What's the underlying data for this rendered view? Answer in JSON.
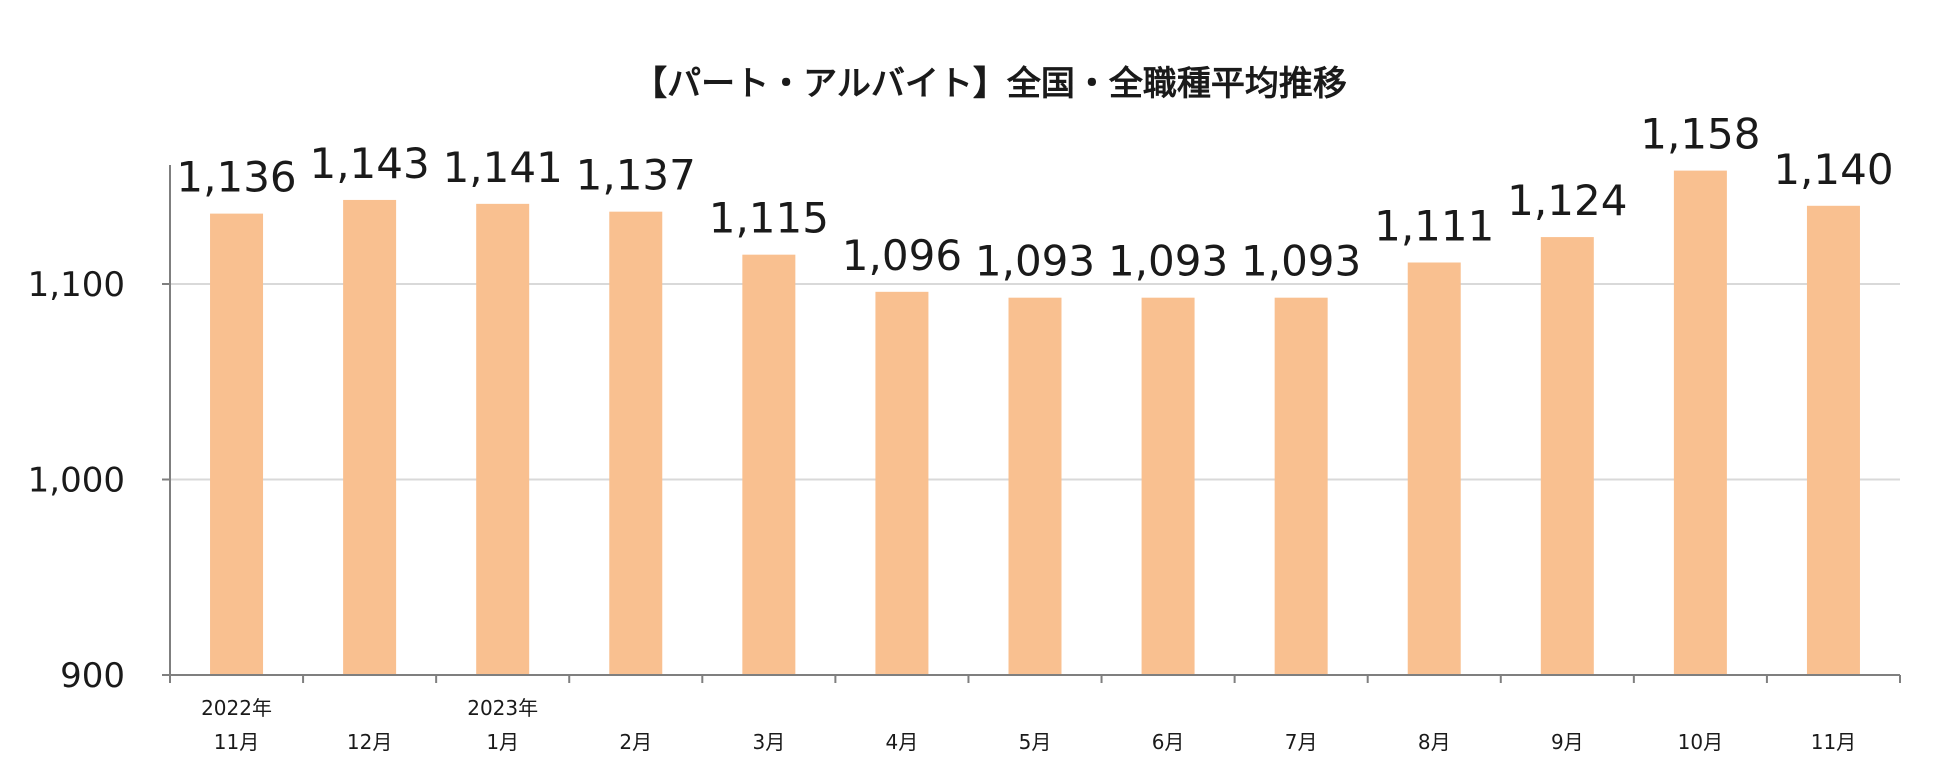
{
  "chart_data": {
    "type": "bar",
    "title": "【パート・アルバイト】全国・全職種平均推移",
    "xlabel": "",
    "ylabel": "",
    "categories": [
      "11月",
      "12月",
      "1月",
      "2月",
      "3月",
      "4月",
      "5月",
      "6月",
      "7月",
      "8月",
      "9月",
      "10月",
      "11月"
    ],
    "year_labels": [
      "2022年",
      "",
      "2023年",
      "",
      "",
      "",
      "",
      "",
      "",
      "",
      "",
      "",
      ""
    ],
    "values": [
      1136,
      1143,
      1141,
      1137,
      1115,
      1096,
      1093,
      1093,
      1093,
      1111,
      1124,
      1158,
      1140
    ],
    "value_labels": [
      "1,136",
      "1,143",
      "1,141",
      "1,137",
      "1,115",
      "1,096",
      "1,093",
      "1,093",
      "1,093",
      "1,111",
      "1,124",
      "1,158",
      "1,140"
    ],
    "ylim": [
      900,
      1160
    ],
    "yticks": [
      900,
      1000,
      1100
    ],
    "ytick_labels": [
      "900",
      "1,000",
      "1,100"
    ],
    "grid": true,
    "bar_color": "#f9c090",
    "grid_color": "#d9d9d9",
    "axis_color": "#7f7f7f"
  }
}
